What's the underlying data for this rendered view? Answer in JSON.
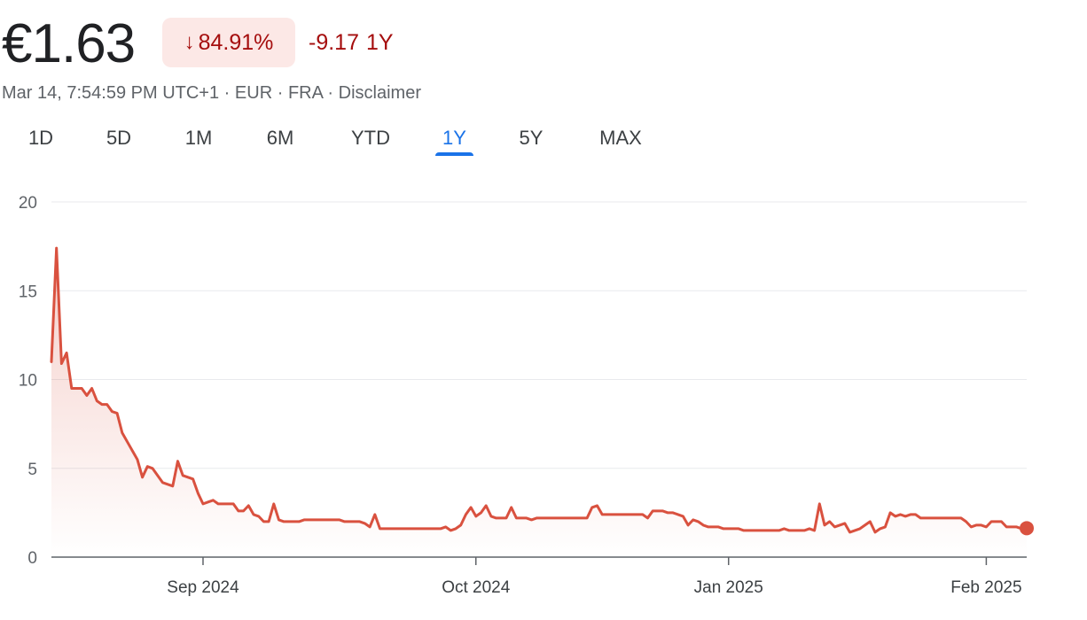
{
  "quote": {
    "price": "€1.63",
    "change_percent": "84.91%",
    "change_value": "-9.17",
    "change_period": "1Y",
    "timestamp": "Mar 14, 7:54:59 PM UTC+1",
    "currency": "EUR",
    "exchange": "FRA",
    "disclaimer_label": "Disclaimer",
    "separator": "·"
  },
  "ranges": {
    "tabs": [
      {
        "label": "1D"
      },
      {
        "label": "5D"
      },
      {
        "label": "1M"
      },
      {
        "label": "6M"
      },
      {
        "label": "YTD"
      },
      {
        "label": "1Y"
      },
      {
        "label": "5Y"
      },
      {
        "label": "MAX"
      }
    ],
    "active": "1Y"
  },
  "colors": {
    "line": "#d9513f",
    "accent": "#1a73e8",
    "negative": "#a50e0e",
    "negative_bg": "#fce8e6"
  },
  "chart_data": {
    "type": "area",
    "title": "",
    "xlabel": "",
    "ylabel": "",
    "ylim": [
      0,
      20
    ],
    "y_ticks": [
      0,
      5,
      10,
      15,
      20
    ],
    "grid": true,
    "x_tick_labels": [
      {
        "label": "Sep 2024",
        "index": 30
      },
      {
        "label": "Oct 2024",
        "index": 84
      },
      {
        "label": "Jan 2025",
        "index": 134
      },
      {
        "label": "Feb 2025",
        "index": 185
      }
    ],
    "series": [
      {
        "values": [
          11.0,
          17.4,
          10.9,
          11.5,
          9.5,
          9.5,
          9.5,
          9.1,
          9.5,
          8.8,
          8.6,
          8.6,
          8.2,
          8.1,
          7.0,
          6.5,
          6.0,
          5.5,
          4.5,
          5.1,
          5.0,
          4.6,
          4.2,
          4.1,
          4.0,
          5.4,
          4.6,
          4.5,
          4.4,
          3.6,
          3.0,
          3.1,
          3.2,
          3.0,
          3.0,
          3.0,
          3.0,
          2.6,
          2.6,
          2.9,
          2.4,
          2.3,
          2.0,
          2.0,
          3.0,
          2.1,
          2.0,
          2.0,
          2.0,
          2.0,
          2.1,
          2.1,
          2.1,
          2.1,
          2.1,
          2.1,
          2.1,
          2.1,
          2.0,
          2.0,
          2.0,
          2.0,
          1.9,
          1.7,
          2.4,
          1.6,
          1.6,
          1.6,
          1.6,
          1.6,
          1.6,
          1.6,
          1.6,
          1.6,
          1.6,
          1.6,
          1.6,
          1.6,
          1.7,
          1.5,
          1.6,
          1.8,
          2.4,
          2.8,
          2.3,
          2.5,
          2.9,
          2.3,
          2.2,
          2.2,
          2.2,
          2.8,
          2.2,
          2.2,
          2.2,
          2.1,
          2.2,
          2.2,
          2.2,
          2.2,
          2.2,
          2.2,
          2.2,
          2.2,
          2.2,
          2.2,
          2.2,
          2.8,
          2.9,
          2.4,
          2.4,
          2.4,
          2.4,
          2.4,
          2.4,
          2.4,
          2.4,
          2.4,
          2.2,
          2.6,
          2.6,
          2.6,
          2.5,
          2.5,
          2.4,
          2.3,
          1.8,
          2.1,
          2.0,
          1.8,
          1.7,
          1.7,
          1.7,
          1.6,
          1.6,
          1.6,
          1.6,
          1.5,
          1.5,
          1.5,
          1.5,
          1.5,
          1.5,
          1.5,
          1.5,
          1.6,
          1.5,
          1.5,
          1.5,
          1.5,
          1.6,
          1.5,
          3.0,
          1.8,
          2.0,
          1.7,
          1.8,
          1.9,
          1.4,
          1.5,
          1.6,
          1.8,
          2.0,
          1.4,
          1.6,
          1.7,
          2.5,
          2.3,
          2.4,
          2.3,
          2.4,
          2.4,
          2.2,
          2.2,
          2.2,
          2.2,
          2.2,
          2.2,
          2.2,
          2.2,
          2.2,
          2.0,
          1.7,
          1.8,
          1.8,
          1.7,
          2.0,
          2.0,
          2.0,
          1.7,
          1.7,
          1.7,
          1.6,
          1.63
        ]
      }
    ]
  }
}
